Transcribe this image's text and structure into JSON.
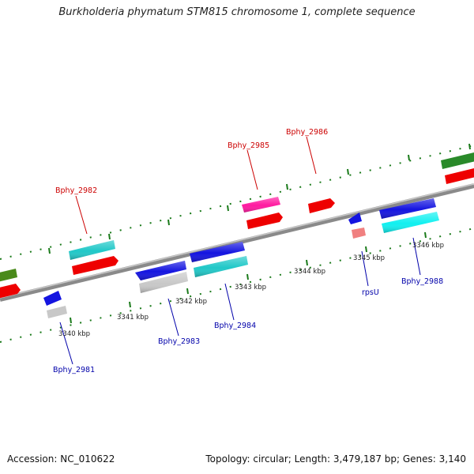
{
  "title": "Burkholderia phymatum STM815 chromosome 1, complete sequence",
  "footer": {
    "accession": "Accession: NC_010622",
    "summary": "Topology: circular; Length: 3,479,187 bp; Genes: 3,140"
  },
  "tick_labels": [
    "3340 kbp",
    "3341 kbp",
    "3342 kbp",
    "3343 kbp",
    "3344 kbp",
    "3345 kbp",
    "3346 kbp"
  ],
  "gene_labels_top": [
    "Bphy_2982",
    "Bphy_2985",
    "Bphy_2986"
  ],
  "gene_labels_bottom": [
    "Bphy_2981",
    "Bphy_2983",
    "Bphy_2984",
    "rpsU",
    "Bphy_2988"
  ],
  "colors": {
    "top_label": "#cc0000",
    "bottom_label": "#0000aa",
    "tick_mark": "#1a7a1a",
    "backbone": "#8a8a8a"
  }
}
